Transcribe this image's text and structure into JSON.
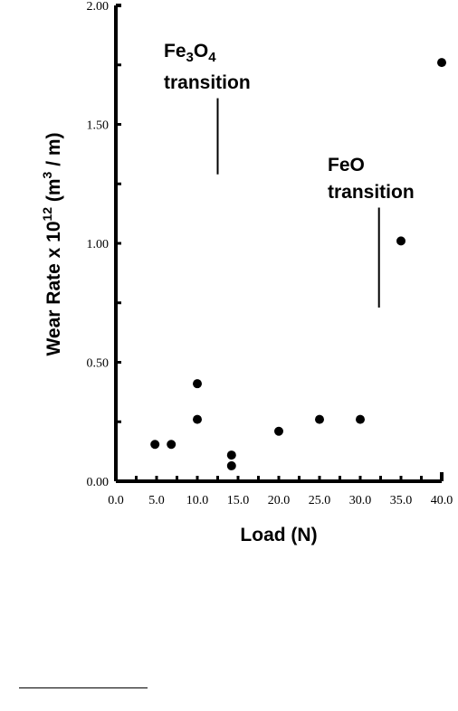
{
  "chart_data": {
    "type": "scatter",
    "title": "",
    "xlabel": "Load (N)",
    "ylabel": {
      "prefix": "Wear Rate x 10",
      "exponent": "12",
      "unit_open": "  (m",
      "unit_sup": "3",
      "unit_close": " / m)"
    },
    "xlim": [
      0,
      40
    ],
    "ylim": [
      0,
      2.0
    ],
    "xticks": [
      "0.0",
      "5.0",
      "10.0",
      "15.0",
      "20.0",
      "25.0",
      "30.0",
      "35.0",
      "40.0"
    ],
    "yticks": [
      "0.00",
      "0.50",
      "1.00",
      "1.50",
      "2.00"
    ],
    "points": [
      {
        "x": 4.8,
        "y": 0.155
      },
      {
        "x": 6.8,
        "y": 0.155
      },
      {
        "x": 10.0,
        "y": 0.41
      },
      {
        "x": 10.0,
        "y": 0.26
      },
      {
        "x": 14.2,
        "y": 0.11
      },
      {
        "x": 14.2,
        "y": 0.065
      },
      {
        "x": 20.0,
        "y": 0.21
      },
      {
        "x": 25.0,
        "y": 0.26
      },
      {
        "x": 30.0,
        "y": 0.26
      },
      {
        "x": 35.0,
        "y": 1.01
      },
      {
        "x": 40.0,
        "y": 1.76
      }
    ],
    "annotations": [
      {
        "label_main": "Fe",
        "label_sub1": "3",
        "label_mid": "O",
        "label_sub2": "4",
        "label_line2": "transition",
        "x": 12.5,
        "y_top": 1.61,
        "y_bottom": 1.29
      },
      {
        "label_main": "FeO",
        "label_line2": "transition",
        "x": 32.3,
        "y_top": 1.15,
        "y_bottom": 0.73
      }
    ]
  },
  "colors": {
    "ink": "#000000",
    "background": "#ffffff"
  }
}
